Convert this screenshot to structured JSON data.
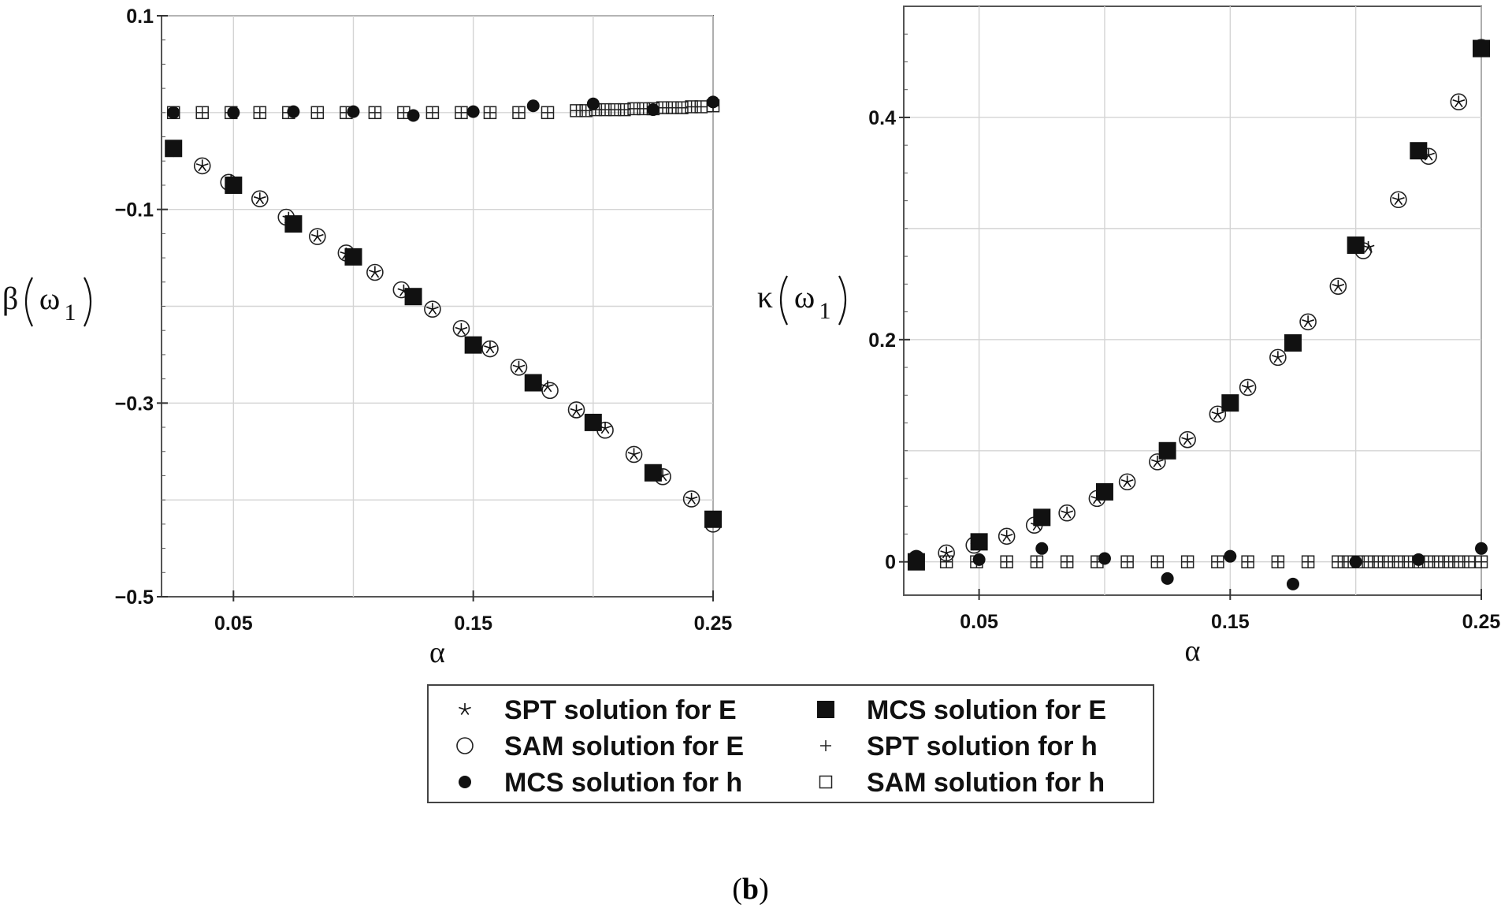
{
  "caption": {
    "open": "(",
    "letter": "b",
    "close": ")"
  },
  "legend": {
    "entries": [
      {
        "symbol": "star",
        "label_bold": "SPT",
        "label_rest": " solution for E"
      },
      {
        "symbol": "circle-open",
        "label_bold": "SAM",
        "label_rest": " solution for E"
      },
      {
        "symbol": "circle-filled",
        "label_bold": "MCS",
        "label_rest": " solution for h"
      },
      {
        "symbol": "square-filled",
        "label_bold": "MCS",
        "label_rest": " solution for E"
      },
      {
        "symbol": "plus",
        "label_bold": "SPT",
        "label_rest": " solution for h"
      },
      {
        "symbol": "square-open",
        "label_bold": "SAM",
        "label_rest": " solution for h"
      }
    ]
  },
  "chart_data": [
    {
      "type": "scatter",
      "title": "",
      "xlabel": "α",
      "ylabel_main": "β",
      "ylabel_var": "ω",
      "ylabel_sub": "1",
      "xlim": [
        0.02,
        0.25
      ],
      "ylim": [
        -0.5,
        0.1
      ],
      "xticks": [
        0.05,
        0.15,
        0.25
      ],
      "xtick_labels": [
        "0.05",
        "0.15",
        "0.25"
      ],
      "yticks": [
        0.1,
        -0.1,
        -0.3,
        -0.5
      ],
      "ytick_labels": [
        "0.1",
        "−0.1",
        "−0.3",
        "−0.5"
      ],
      "grid_x": [
        0.05,
        0.1,
        0.15,
        0.2,
        0.25
      ],
      "grid_y": [
        0.1,
        0.0,
        -0.1,
        -0.2,
        -0.3,
        -0.4
      ],
      "series": [
        {
          "key": "spt_e",
          "symbol": "star",
          "x": [
            0.025,
            0.037,
            0.049,
            0.061,
            0.073,
            0.085,
            0.097,
            0.109,
            0.121,
            0.133,
            0.145,
            0.157,
            0.169,
            0.181,
            0.193,
            0.205,
            0.217,
            0.229,
            0.241,
            0.25
          ],
          "y": [
            -0.037,
            -0.055,
            -0.07,
            -0.089,
            -0.109,
            -0.128,
            -0.146,
            -0.165,
            -0.184,
            -0.203,
            -0.224,
            -0.243,
            -0.263,
            -0.283,
            -0.308,
            -0.326,
            -0.353,
            -0.375,
            -0.399,
            -0.423
          ]
        },
        {
          "key": "sam_e",
          "symbol": "circle-open",
          "x": [
            0.025,
            0.037,
            0.048,
            0.061,
            0.072,
            0.085,
            0.097,
            0.109,
            0.12,
            0.133,
            0.145,
            0.157,
            0.169,
            0.182,
            0.193,
            0.205,
            0.217,
            0.229,
            0.241,
            0.25
          ],
          "y": [
            -0.037,
            -0.055,
            -0.072,
            -0.089,
            -0.108,
            -0.128,
            -0.145,
            -0.165,
            -0.183,
            -0.203,
            -0.223,
            -0.244,
            -0.263,
            -0.287,
            -0.307,
            -0.328,
            -0.353,
            -0.376,
            -0.399,
            -0.425
          ]
        },
        {
          "key": "mcs_h",
          "symbol": "circle-filled",
          "x": [
            0.025,
            0.05,
            0.075,
            0.1,
            0.125,
            0.15,
            0.175,
            0.2,
            0.225,
            0.25
          ],
          "y": [
            0.0,
            0.0,
            0.001,
            0.001,
            -0.003,
            0.001,
            0.007,
            0.009,
            0.003,
            0.011
          ]
        },
        {
          "key": "mcs_e",
          "symbol": "square-filled",
          "x": [
            0.025,
            0.05,
            0.075,
            0.1,
            0.125,
            0.15,
            0.175,
            0.2,
            0.225,
            0.25
          ],
          "y": [
            -0.037,
            -0.075,
            -0.115,
            -0.149,
            -0.19,
            -0.24,
            -0.279,
            -0.32,
            -0.372,
            -0.42
          ]
        },
        {
          "key": "spt_h",
          "symbol": "plus",
          "x": [
            0.025,
            0.037,
            0.049,
            0.061,
            0.073,
            0.085,
            0.097,
            0.109,
            0.121,
            0.133,
            0.145,
            0.157,
            0.169,
            0.181,
            0.193,
            0.197,
            0.201,
            0.205,
            0.209,
            0.213,
            0.217,
            0.221,
            0.225,
            0.229,
            0.233,
            0.237,
            0.241,
            0.245,
            0.25
          ],
          "y": [
            0.0,
            0.0,
            0.0,
            0.0,
            0.0,
            0.0,
            0.0,
            0.0,
            0.0,
            0.0,
            0.0,
            0.0,
            0.0,
            0.0,
            0.002,
            0.002,
            0.003,
            0.003,
            0.003,
            0.003,
            0.004,
            0.004,
            0.004,
            0.005,
            0.005,
            0.005,
            0.006,
            0.006,
            0.007
          ]
        },
        {
          "key": "sam_h",
          "symbol": "square-open",
          "x": [
            0.025,
            0.037,
            0.049,
            0.061,
            0.073,
            0.085,
            0.097,
            0.109,
            0.121,
            0.133,
            0.145,
            0.157,
            0.169,
            0.181,
            0.193,
            0.197,
            0.201,
            0.205,
            0.209,
            0.213,
            0.217,
            0.221,
            0.225,
            0.229,
            0.233,
            0.237,
            0.241,
            0.245,
            0.25
          ],
          "y": [
            0.0,
            0.0,
            0.0,
            0.0,
            0.0,
            0.0,
            0.0,
            0.0,
            0.0,
            0.0,
            0.0,
            0.0,
            0.0,
            0.0,
            0.002,
            0.002,
            0.003,
            0.003,
            0.003,
            0.003,
            0.004,
            0.004,
            0.004,
            0.005,
            0.005,
            0.005,
            0.006,
            0.006,
            0.007
          ]
        }
      ]
    },
    {
      "type": "scatter",
      "title": "",
      "xlabel": "α",
      "ylabel_main": "κ",
      "ylabel_var": "ω",
      "ylabel_sub": "1",
      "xlim": [
        0.02,
        0.25
      ],
      "ylim": [
        -0.03,
        0.5
      ],
      "xticks": [
        0.05,
        0.15,
        0.25
      ],
      "xtick_labels": [
        "0.05",
        "0.15",
        "0.25"
      ],
      "yticks": [
        0.4,
        0.2,
        0.0
      ],
      "ytick_labels": [
        "0.4",
        "0.2",
        "0"
      ],
      "grid_x": [
        0.05,
        0.1,
        0.15,
        0.2,
        0.25
      ],
      "grid_y": [
        0.0,
        0.1,
        0.2,
        0.3,
        0.4
      ],
      "series": [
        {
          "key": "spt_e",
          "symbol": "star",
          "x": [
            0.025,
            0.037,
            0.049,
            0.061,
            0.073,
            0.085,
            0.097,
            0.109,
            0.121,
            0.133,
            0.145,
            0.157,
            0.169,
            0.181,
            0.193,
            0.205,
            0.217,
            0.229,
            0.241,
            0.25
          ],
          "y": [
            0.003,
            0.008,
            0.015,
            0.023,
            0.033,
            0.044,
            0.057,
            0.072,
            0.09,
            0.11,
            0.133,
            0.157,
            0.184,
            0.216,
            0.248,
            0.283,
            0.326,
            0.366,
            0.414,
            0.463
          ]
        },
        {
          "key": "sam_e",
          "symbol": "circle-open",
          "x": [
            0.025,
            0.037,
            0.048,
            0.061,
            0.072,
            0.085,
            0.097,
            0.109,
            0.121,
            0.133,
            0.145,
            0.157,
            0.169,
            0.181,
            0.193,
            0.203,
            0.217,
            0.229,
            0.241,
            0.25
          ],
          "y": [
            0.003,
            0.008,
            0.015,
            0.023,
            0.033,
            0.044,
            0.057,
            0.072,
            0.09,
            0.11,
            0.133,
            0.157,
            0.184,
            0.216,
            0.248,
            0.28,
            0.326,
            0.365,
            0.414,
            0.463
          ]
        },
        {
          "key": "mcs_h",
          "symbol": "circle-filled",
          "x": [
            0.025,
            0.05,
            0.075,
            0.1,
            0.125,
            0.15,
            0.175,
            0.2,
            0.225,
            0.25
          ],
          "y": [
            0.005,
            0.002,
            0.012,
            0.003,
            -0.015,
            0.005,
            -0.02,
            0.0,
            0.002,
            0.012
          ]
        },
        {
          "key": "mcs_e",
          "symbol": "square-filled",
          "x": [
            0.025,
            0.05,
            0.075,
            0.1,
            0.125,
            0.15,
            0.175,
            0.2,
            0.225,
            0.25
          ],
          "y": [
            0.0,
            0.018,
            0.04,
            0.063,
            0.1,
            0.143,
            0.197,
            0.285,
            0.37,
            0.462
          ]
        },
        {
          "key": "spt_h",
          "symbol": "plus",
          "x": [
            0.025,
            0.037,
            0.049,
            0.061,
            0.073,
            0.085,
            0.097,
            0.109,
            0.121,
            0.133,
            0.145,
            0.157,
            0.169,
            0.181,
            0.193,
            0.197,
            0.201,
            0.205,
            0.209,
            0.213,
            0.217,
            0.221,
            0.225,
            0.229,
            0.233,
            0.237,
            0.241,
            0.245,
            0.25
          ],
          "y": [
            0.0,
            0.0,
            0.0,
            0.0,
            0.0,
            0.0,
            0.0,
            0.0,
            0.0,
            0.0,
            0.0,
            0.0,
            0.0,
            0.0,
            0.0,
            0.0,
            0.0,
            0.0,
            0.0,
            0.0,
            0.0,
            0.0,
            0.0,
            0.0,
            0.0,
            0.0,
            0.0,
            0.0,
            0.0
          ]
        },
        {
          "key": "sam_h",
          "symbol": "square-open",
          "x": [
            0.025,
            0.037,
            0.049,
            0.061,
            0.073,
            0.085,
            0.097,
            0.109,
            0.121,
            0.133,
            0.145,
            0.157,
            0.169,
            0.181,
            0.193,
            0.197,
            0.201,
            0.205,
            0.209,
            0.213,
            0.217,
            0.221,
            0.225,
            0.229,
            0.233,
            0.237,
            0.241,
            0.245,
            0.25
          ],
          "y": [
            0.0,
            0.0,
            0.0,
            0.0,
            0.0,
            0.0,
            0.0,
            0.0,
            0.0,
            0.0,
            0.0,
            0.0,
            0.0,
            0.0,
            0.0,
            0.0,
            0.0,
            0.0,
            0.0,
            0.0,
            0.0,
            0.0,
            0.0,
            0.0,
            0.0,
            0.0,
            0.0,
            0.0,
            0.0
          ]
        }
      ]
    }
  ]
}
